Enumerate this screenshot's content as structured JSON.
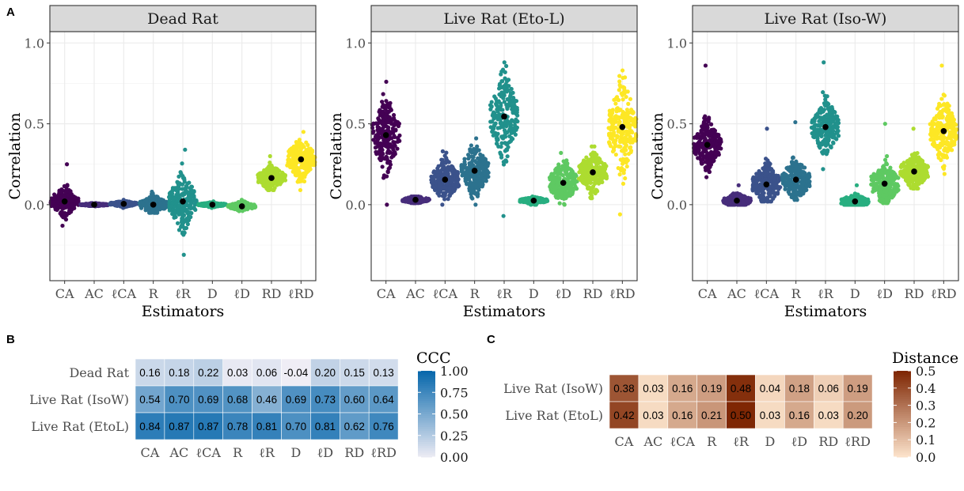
{
  "panel_labels": [
    "A",
    "B",
    "C"
  ],
  "colors": {
    "CA": "#440154",
    "AC": "#472d7b",
    "lCA": "#3b528b",
    "R": "#2c728e",
    "lR": "#21918c",
    "D": "#28ae80",
    "lD": "#5ec962",
    "RD": "#addc30",
    "lRD": "#fde725",
    "strip_bg": "#d9d9d9",
    "panel_border": "#333333",
    "grid": "#ebebeb"
  },
  "chart_data": [
    {
      "type": "scatter",
      "title": "Dead Rat",
      "xlabel": "Estimators",
      "ylabel": "Correlation",
      "categories": [
        "CA",
        "AC",
        "ℓCA",
        "R",
        "ℓR",
        "D",
        "ℓD",
        "RD",
        "ℓRD"
      ],
      "ylim": [
        -0.47,
        1.07
      ],
      "yticks": [
        0.0,
        0.5,
        1.0
      ],
      "ytick_labels": [
        "0.0",
        "0.5",
        "1.0"
      ],
      "means": [
        0.02,
        0.0,
        0.005,
        0.0,
        0.02,
        0.0,
        -0.01,
        0.165,
        0.28
      ],
      "ranges": [
        [
          -0.13,
          0.25
        ],
        [
          -0.01,
          0.01
        ],
        [
          -0.02,
          0.03
        ],
        [
          -0.05,
          0.08
        ],
        [
          -0.31,
          0.34
        ],
        [
          -0.02,
          0.02
        ],
        [
          -0.04,
          0.03
        ],
        [
          0.09,
          0.3
        ],
        [
          0.09,
          0.45
        ]
      ],
      "spread": [
        0.04,
        0.004,
        0.008,
        0.025,
        0.08,
        0.006,
        0.012,
        0.035,
        0.06
      ]
    },
    {
      "type": "scatter",
      "title": "Live Rat (Eto-L)",
      "xlabel": "Estimators",
      "ylabel": "Correlation",
      "categories": [
        "CA",
        "AC",
        "ℓCA",
        "R",
        "ℓR",
        "D",
        "ℓD",
        "RD",
        "ℓRD"
      ],
      "ylim": [
        -0.47,
        1.07
      ],
      "yticks": [
        0.0,
        0.5,
        1.0
      ],
      "ytick_labels": [
        "0.0",
        "0.5",
        "1.0"
      ],
      "means": [
        0.43,
        0.03,
        0.155,
        0.21,
        0.545,
        0.025,
        0.135,
        0.2,
        0.48
      ],
      "ranges": [
        [
          0.0,
          0.76
        ],
        [
          0.01,
          0.05
        ],
        [
          0.0,
          0.33
        ],
        [
          0.0,
          0.41
        ],
        [
          -0.07,
          0.88
        ],
        [
          0.0,
          0.05
        ],
        [
          0.0,
          0.32
        ],
        [
          0.04,
          0.36
        ],
        [
          -0.06,
          0.83
        ]
      ],
      "spread": [
        0.1,
        0.01,
        0.06,
        0.07,
        0.12,
        0.01,
        0.06,
        0.06,
        0.13
      ]
    },
    {
      "type": "scatter",
      "title": "Live Rat (Iso-W)",
      "xlabel": "Estimators",
      "ylabel": "Correlation",
      "categories": [
        "CA",
        "AC",
        "ℓCA",
        "R",
        "ℓR",
        "D",
        "ℓD",
        "RD",
        "ℓRD"
      ],
      "ylim": [
        -0.47,
        1.07
      ],
      "yticks": [
        0.0,
        0.5,
        1.0
      ],
      "ytick_labels": [
        "0.0",
        "0.5",
        "1.0"
      ],
      "means": [
        0.37,
        0.025,
        0.125,
        0.155,
        0.48,
        0.02,
        0.13,
        0.205,
        0.455
      ],
      "ranges": [
        [
          0.17,
          0.86
        ],
        [
          0.0,
          0.12
        ],
        [
          0.02,
          0.47
        ],
        [
          0.03,
          0.51
        ],
        [
          0.22,
          0.88
        ],
        [
          0.0,
          0.12
        ],
        [
          0.01,
          0.5
        ],
        [
          0.1,
          0.47
        ],
        [
          0.19,
          0.86
        ]
      ],
      "spread": [
        0.07,
        0.02,
        0.06,
        0.06,
        0.08,
        0.02,
        0.06,
        0.05,
        0.09
      ]
    },
    {
      "type": "heatmap",
      "title": "",
      "rows": [
        "Dead Rat",
        "Live Rat (IsoW)",
        "Live Rat (EtoL)"
      ],
      "columns": [
        "CA",
        "AC",
        "ℓCA",
        "R",
        "ℓR",
        "D",
        "ℓD",
        "RD",
        "ℓRD"
      ],
      "values": [
        [
          0.16,
          0.18,
          0.22,
          0.03,
          0.06,
          -0.04,
          0.2,
          0.15,
          0.13
        ],
        [
          0.54,
          0.7,
          0.69,
          0.68,
          0.46,
          0.69,
          0.73,
          0.6,
          0.64
        ],
        [
          0.84,
          0.87,
          0.87,
          0.78,
          0.81,
          0.7,
          0.81,
          0.62,
          0.76
        ]
      ],
      "labels": [
        [
          "0.16",
          "0.18",
          "0.22",
          "0.03",
          "0.06",
          "-0.04",
          "0.20",
          "0.15",
          "0.13"
        ],
        [
          "0.54",
          "0.70",
          "0.69",
          "0.68",
          "0.46",
          "0.69",
          "0.73",
          "0.60",
          "0.64"
        ],
        [
          "0.84",
          "0.87",
          "0.87",
          "0.78",
          "0.81",
          "0.70",
          "0.81",
          "0.62",
          "0.76"
        ]
      ],
      "legend_title": "CCC",
      "legend_ticks": [
        "1.00",
        "0.75",
        "0.50",
        "0.25",
        "0.00"
      ],
      "range": [
        0.0,
        1.0
      ],
      "low_color": "#efedf5",
      "high_color": "#0868ac"
    },
    {
      "type": "heatmap",
      "title": "",
      "rows": [
        "Live Rat (IsoW)",
        "Live Rat (EtoL)"
      ],
      "columns": [
        "CA",
        "AC",
        "ℓCA",
        "R",
        "ℓR",
        "D",
        "ℓD",
        "RD",
        "ℓRD"
      ],
      "values": [
        [
          0.38,
          0.03,
          0.16,
          0.19,
          0.48,
          0.04,
          0.18,
          0.06,
          0.19
        ],
        [
          0.42,
          0.03,
          0.16,
          0.21,
          0.5,
          0.03,
          0.16,
          0.03,
          0.2
        ]
      ],
      "labels": [
        [
          "0.38",
          "0.03",
          "0.16",
          "0.19",
          "0.48",
          "0.04",
          "0.18",
          "0.06",
          "0.19"
        ],
        [
          "0.42",
          "0.03",
          "0.16",
          "0.21",
          "0.50",
          "0.03",
          "0.16",
          "0.03",
          "0.20"
        ]
      ],
      "legend_title": "Distance",
      "legend_ticks": [
        "0.5",
        "0.4",
        "0.3",
        "0.2",
        "0.1",
        "0.0"
      ],
      "range": [
        0.0,
        0.5
      ],
      "low_color": "#fee6ce",
      "high_color": "#7f2704"
    }
  ]
}
